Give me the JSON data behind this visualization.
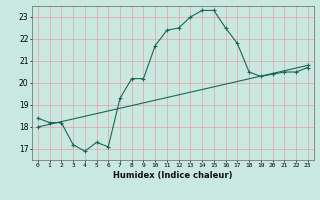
{
  "title": "",
  "xlabel": "Humidex (Indice chaleur)",
  "ylabel": "",
  "bg_color": "#c8e8e0",
  "grid_color": "#e8a0a8",
  "line_color": "#1a6858",
  "xlim": [
    -0.5,
    23.5
  ],
  "ylim": [
    16.5,
    23.5
  ],
  "xticks": [
    0,
    1,
    2,
    3,
    4,
    5,
    6,
    7,
    8,
    9,
    10,
    11,
    12,
    13,
    14,
    15,
    16,
    17,
    18,
    19,
    20,
    21,
    22,
    23
  ],
  "yticks": [
    17,
    18,
    19,
    20,
    21,
    22,
    23
  ],
  "line1_x": [
    0,
    1,
    2,
    3,
    4,
    5,
    6,
    7,
    8,
    9,
    10,
    11,
    12,
    13,
    14,
    15,
    16,
    17,
    18,
    19,
    20,
    21,
    22,
    23
  ],
  "line1_y": [
    18.4,
    18.2,
    18.2,
    17.2,
    16.9,
    17.3,
    17.1,
    19.3,
    20.2,
    20.2,
    21.7,
    22.4,
    22.5,
    23.0,
    23.3,
    23.3,
    22.5,
    21.8,
    20.5,
    20.3,
    20.4,
    20.5,
    20.5,
    20.7
  ],
  "line2_x": [
    0,
    23
  ],
  "line2_y": [
    18.0,
    20.8
  ]
}
